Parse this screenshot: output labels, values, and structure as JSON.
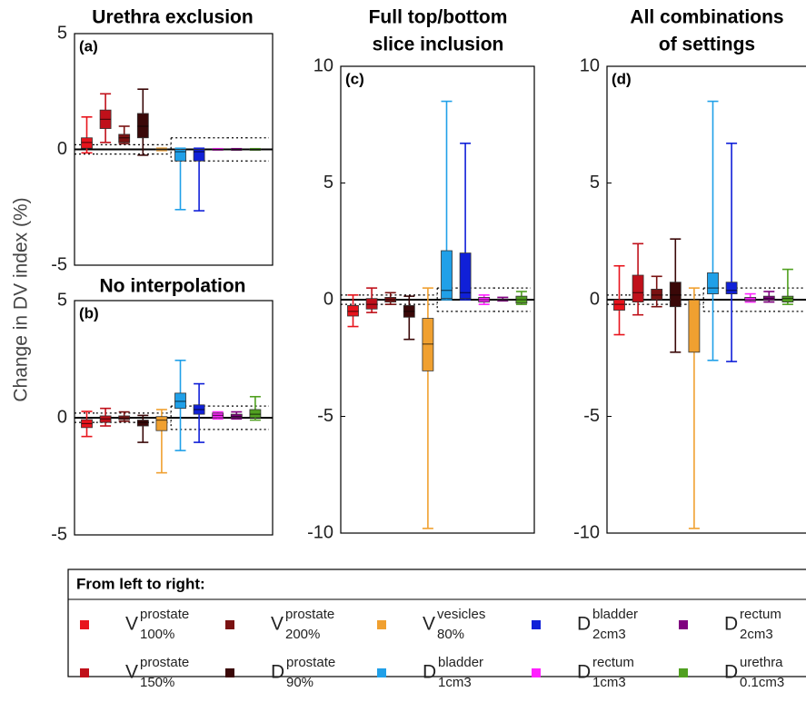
{
  "ylabel": "Change in DV index (%)",
  "chart_data": [
    {
      "type": "box",
      "title": [
        "Urethra exclusion"
      ],
      "panel_label": "(a)",
      "ylim": [
        -5,
        5
      ],
      "yticks": [
        -5,
        0,
        5
      ],
      "series": [
        {
          "values": [
            -0.15,
            0.05,
            0.3,
            0.5,
            1.4
          ]
        },
        {
          "values": [
            0.3,
            0.9,
            1.3,
            1.7,
            2.4
          ]
        },
        {
          "values": [
            0.25,
            0.3,
            0.5,
            0.65,
            1.0
          ]
        },
        {
          "values": [
            -0.25,
            0.5,
            1.0,
            1.55,
            2.6
          ]
        },
        {
          "values": [
            -0.05,
            -0.02,
            0,
            0.02,
            0.05
          ]
        },
        {
          "values": [
            -2.6,
            -0.5,
            -0.1,
            0,
            0.05
          ]
        },
        {
          "values": [
            -2.65,
            -0.5,
            -0.1,
            0,
            0.05
          ]
        },
        {
          "values": [
            -0.03,
            -0.01,
            0,
            0.01,
            0.03
          ]
        },
        {
          "values": [
            -0.03,
            -0.01,
            0,
            0.01,
            0.03
          ]
        },
        {
          "values": [
            -0.03,
            -0.01,
            0,
            0.01,
            0.03
          ]
        }
      ]
    },
    {
      "type": "box",
      "title": [
        "No interpolation"
      ],
      "panel_label": "(b)",
      "ylim": [
        -5,
        5
      ],
      "yticks": [
        -5,
        0,
        5
      ],
      "series": [
        {
          "values": [
            -0.8,
            -0.42,
            -0.25,
            -0.08,
            0.27
          ]
        },
        {
          "values": [
            -0.35,
            -0.2,
            -0.05,
            0.08,
            0.4
          ]
        },
        {
          "values": [
            -0.15,
            -0.08,
            -0.02,
            0.08,
            0.25
          ]
        },
        {
          "values": [
            -1.05,
            -0.35,
            -0.2,
            -0.1,
            0.1
          ]
        },
        {
          "values": [
            -2.35,
            -0.55,
            -0.1,
            0.05,
            0.35
          ]
        },
        {
          "values": [
            -1.4,
            0.4,
            0.7,
            1.05,
            2.45
          ]
        },
        {
          "values": [
            -1.05,
            0.15,
            0.35,
            0.55,
            1.45
          ]
        },
        {
          "values": [
            -0.05,
            0,
            0.1,
            0.2,
            0.25
          ]
        },
        {
          "values": [
            -0.05,
            0,
            0.05,
            0.15,
            0.25
          ]
        },
        {
          "values": [
            -0.1,
            0,
            0.15,
            0.35,
            0.9
          ]
        }
      ]
    },
    {
      "type": "box",
      "title": [
        "Full top/bottom",
        "slice inclusion"
      ],
      "panel_label": "(c)",
      "ylim": [
        -10,
        10
      ],
      "yticks": [
        -10,
        -5,
        0,
        5,
        10
      ],
      "series": [
        {
          "values": [
            -1.15,
            -0.7,
            -0.5,
            -0.25,
            0.2
          ]
        },
        {
          "values": [
            -0.55,
            -0.4,
            -0.2,
            0.05,
            0.5
          ]
        },
        {
          "values": [
            -0.2,
            -0.1,
            0,
            0.1,
            0.3
          ]
        },
        {
          "values": [
            -1.7,
            -0.75,
            -0.5,
            -0.25,
            0.15
          ]
        },
        {
          "values": [
            -9.8,
            -3.05,
            -1.9,
            -0.8,
            0.5
          ]
        },
        {
          "values": [
            0,
            0.05,
            0.4,
            2.1,
            8.5
          ]
        },
        {
          "values": [
            0,
            0.05,
            0.3,
            2.0,
            6.7
          ]
        },
        {
          "values": [
            -0.2,
            -0.1,
            0,
            0.1,
            0.2
          ]
        },
        {
          "values": [
            -0.05,
            -0.03,
            0,
            0.03,
            0.1
          ]
        },
        {
          "values": [
            -0.2,
            -0.15,
            0,
            0.15,
            0.35
          ]
        }
      ]
    },
    {
      "type": "box",
      "title": [
        "All combinations",
        "of settings"
      ],
      "panel_label": "(d)",
      "ylim": [
        -10,
        10
      ],
      "yticks": [
        -10,
        -5,
        0,
        5,
        10
      ],
      "series": [
        {
          "values": [
            -1.5,
            -0.45,
            -0.2,
            0,
            1.45
          ]
        },
        {
          "values": [
            -0.65,
            -0.1,
            0.3,
            1.05,
            2.4
          ]
        },
        {
          "values": [
            -0.3,
            0,
            0.2,
            0.45,
            1.0
          ]
        },
        {
          "values": [
            -2.25,
            -0.3,
            0.2,
            0.75,
            2.6
          ]
        },
        {
          "values": [
            -9.8,
            -2.25,
            0,
            0,
            0.5
          ]
        },
        {
          "values": [
            -2.6,
            0.25,
            0.5,
            1.15,
            8.5
          ]
        },
        {
          "values": [
            -2.65,
            0.25,
            0.4,
            0.75,
            6.7
          ]
        },
        {
          "values": [
            -0.1,
            -0.05,
            0,
            0.1,
            0.25
          ]
        },
        {
          "values": [
            -0.1,
            -0.03,
            0.05,
            0.15,
            0.35
          ]
        },
        {
          "values": [
            -0.2,
            -0.1,
            0.05,
            0.15,
            1.3
          ]
        }
      ]
    }
  ],
  "legend": {
    "title": "From left to right:",
    "items": [
      {
        "base": "V",
        "sup": "prostate",
        "sub": "100%",
        "color": "#e8141c",
        "tolerance": 0.2
      },
      {
        "base": "V",
        "sup": "prostate",
        "sub": "150%",
        "color": "#c0101a",
        "tolerance": 0.2
      },
      {
        "base": "V",
        "sup": "prostate",
        "sub": "200%",
        "color": "#7a1212",
        "tolerance": 0.2
      },
      {
        "base": "D",
        "sup": "prostate",
        "sub": "90%",
        "color": "#3a0808",
        "tolerance": 0.2
      },
      {
        "base": "V",
        "sup": "vesicles",
        "sub": "80%",
        "color": "#f0a030",
        "tolerance": 0.2
      },
      {
        "base": "D",
        "sup": "bladder",
        "sub": "1cm3",
        "color": "#20a0e8",
        "tolerance": 0.5
      },
      {
        "base": "D",
        "sup": "bladder",
        "sub": "2cm3",
        "color": "#1020d8",
        "tolerance": 0.5
      },
      {
        "base": "D",
        "sup": "rectum",
        "sub": "1cm3",
        "color": "#ff20ff",
        "tolerance": 0.5
      },
      {
        "base": "D",
        "sup": "rectum",
        "sub": "2cm3",
        "color": "#800080",
        "tolerance": 0.5
      },
      {
        "base": "D",
        "sup": "urethra",
        "sub": "0.1cm3",
        "color": "#50a020",
        "tolerance": 0.5
      }
    ]
  }
}
